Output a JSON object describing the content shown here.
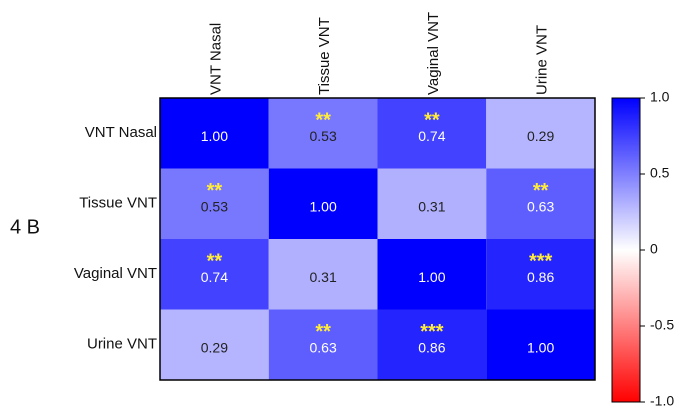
{
  "panel_label": "4 B",
  "chart_data": {
    "type": "heatmap",
    "columns": [
      "VNT Nasal",
      "Tissue VNT",
      "Vaginal VNT",
      "Urine VNT"
    ],
    "rows": [
      "VNT Nasal",
      "Tissue VNT",
      "Vaginal VNT",
      "Urine VNT"
    ],
    "values": [
      [
        1,
        0.53,
        0.74,
        0.29
      ],
      [
        0.53,
        1,
        0.31,
        0.63
      ],
      [
        0.74,
        0.31,
        1,
        0.86
      ],
      [
        0.29,
        0.63,
        0.86,
        1
      ]
    ],
    "value_labels": [
      [
        "1.00",
        "0.53",
        "0.74",
        "0.29"
      ],
      [
        "0.53",
        "1.00",
        "0.31",
        "0.63"
      ],
      [
        "0.74",
        "0.31",
        "1.00",
        "0.86"
      ],
      [
        "0.29",
        "0.63",
        "0.86",
        "1.00"
      ]
    ],
    "significance": [
      [
        null,
        "**",
        "**",
        null
      ],
      [
        "**",
        null,
        null,
        "**"
      ],
      [
        "**",
        null,
        null,
        "***"
      ],
      [
        null,
        "**",
        "***",
        null
      ]
    ],
    "colormap": [
      "#ff0000",
      "#ffffff",
      "#0000ff"
    ],
    "clim": [
      -1,
      1
    ],
    "cticks": [
      {
        "value": 1,
        "label": "1.0"
      },
      0.5,
      0,
      -0.5,
      {
        "value": -1,
        "label": "-1.0"
      }
    ]
  }
}
